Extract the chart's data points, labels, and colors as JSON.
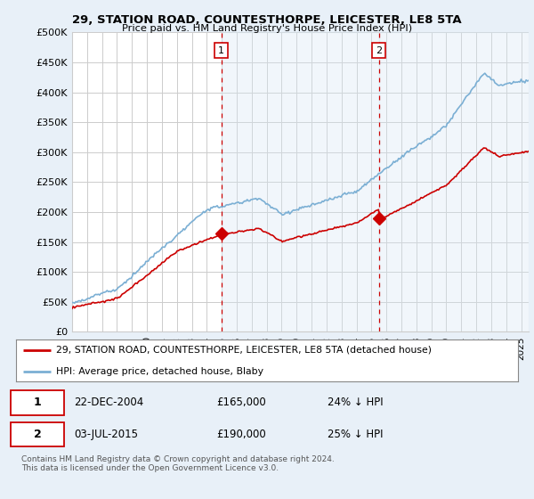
{
  "title": "29, STATION ROAD, COUNTESTHORPE, LEICESTER, LE8 5TA",
  "subtitle": "Price paid vs. HM Land Registry's House Price Index (HPI)",
  "ylabel_ticks": [
    "£0",
    "£50K",
    "£100K",
    "£150K",
    "£200K",
    "£250K",
    "£300K",
    "£350K",
    "£400K",
    "£450K",
    "£500K"
  ],
  "ytick_values": [
    0,
    50000,
    100000,
    150000,
    200000,
    250000,
    300000,
    350000,
    400000,
    450000,
    500000
  ],
  "ylim": [
    0,
    500000
  ],
  "xlim_start": 1995.0,
  "xlim_end": 2025.5,
  "hpi_color": "#7bafd4",
  "price_color": "#cc0000",
  "vline_color": "#cc0000",
  "shade_color": "#d8e8f5",
  "sale1_x": 2004.97,
  "sale1_y": 165000,
  "sale2_x": 2015.5,
  "sale2_y": 190000,
  "legend_line1": "29, STATION ROAD, COUNTESTHORPE, LEICESTER, LE8 5TA (detached house)",
  "legend_line2": "HPI: Average price, detached house, Blaby",
  "row1_date": "22-DEC-2004",
  "row1_price": "£165,000",
  "row1_hpi": "24% ↓ HPI",
  "row2_date": "03-JUL-2015",
  "row2_price": "£190,000",
  "row2_hpi": "25% ↓ HPI",
  "footnote": "Contains HM Land Registry data © Crown copyright and database right 2024.\nThis data is licensed under the Open Government Licence v3.0.",
  "background_color": "#e8f0f8",
  "plot_bg_color": "#ffffff",
  "grid_color": "#cccccc"
}
